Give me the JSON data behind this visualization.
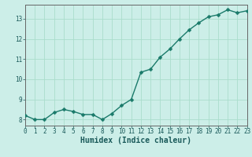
{
  "x": [
    0,
    1,
    2,
    3,
    4,
    5,
    6,
    7,
    8,
    9,
    10,
    11,
    12,
    13,
    14,
    15,
    16,
    17,
    18,
    19,
    20,
    21,
    22,
    23
  ],
  "y": [
    8.2,
    8.0,
    8.0,
    8.35,
    8.5,
    8.4,
    8.25,
    8.25,
    8.0,
    8.3,
    8.7,
    9.0,
    10.35,
    10.5,
    11.1,
    11.5,
    12.0,
    12.45,
    12.8,
    13.1,
    13.2,
    13.45,
    13.3,
    13.4
  ],
  "line_color": "#1a7a6a",
  "marker": "D",
  "marker_size": 2.5,
  "line_width": 1.0,
  "bg_color": "#cceee8",
  "grid_color": "#aaddcc",
  "xlabel": "Humidex (Indice chaleur)",
  "ylim": [
    7.7,
    13.7
  ],
  "xlim": [
    0,
    23
  ],
  "yticks": [
    8,
    9,
    10,
    11,
    12,
    13
  ],
  "xticks": [
    0,
    1,
    2,
    3,
    4,
    5,
    6,
    7,
    8,
    9,
    10,
    11,
    12,
    13,
    14,
    15,
    16,
    17,
    18,
    19,
    20,
    21,
    22,
    23
  ],
  "tick_fontsize": 5.5,
  "xlabel_fontsize": 7,
  "tick_color": "#1a5a5a",
  "xlabel_color": "#1a5a5a",
  "spine_color": "#666666"
}
